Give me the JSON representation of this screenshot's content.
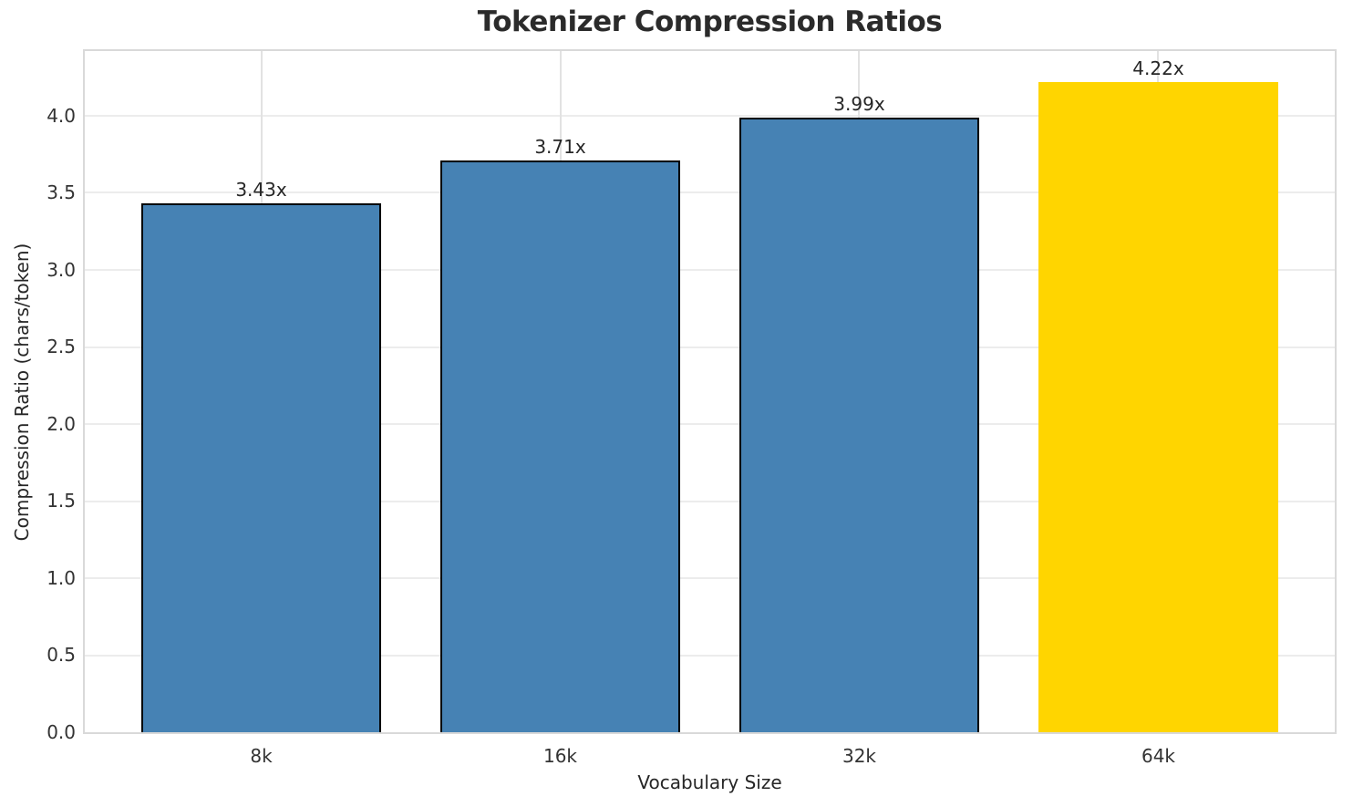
{
  "title": "Tokenizer Compression Ratios",
  "colors": {
    "background": "#ffffff",
    "bar_blue": "#4682b4",
    "bar_gold": "#ffd500",
    "bar_edge": "#000000",
    "gridline": "#ececec",
    "spine": "#d9d9d9",
    "text": "#262626",
    "tick_text": "#333333",
    "title_text": "#2b2b2b"
  },
  "chart_data": {
    "type": "bar",
    "title": "Tokenizer Compression Ratios",
    "xlabel": "Vocabulary Size",
    "ylabel": "Compression Ratio (chars/token)",
    "categories": [
      "8k",
      "16k",
      "32k",
      "64k"
    ],
    "values": [
      3.43,
      3.71,
      3.99,
      4.22
    ],
    "bar_labels": [
      "3.43x",
      "3.71x",
      "3.99x",
      "4.22x"
    ],
    "bar_colors": [
      "#4682b4",
      "#4682b4",
      "#4682b4",
      "#ffd500"
    ],
    "bar_edge_colors": [
      "#000000",
      "#000000",
      "#000000",
      "none"
    ],
    "highlight_index": 3,
    "ylim": [
      0,
      4.42
    ],
    "yticks": [
      0.0,
      0.5,
      1.0,
      1.5,
      2.0,
      2.5,
      3.0,
      3.5,
      4.0
    ],
    "ytick_labels": [
      "0.0",
      "0.5",
      "1.0",
      "1.5",
      "2.0",
      "2.5",
      "3.0",
      "3.5",
      "4.0"
    ],
    "grid": true,
    "grid_axes": "both",
    "legend_position": "none",
    "bar_width_units": 0.8,
    "xlim_units": [
      -0.59,
      3.59
    ]
  }
}
